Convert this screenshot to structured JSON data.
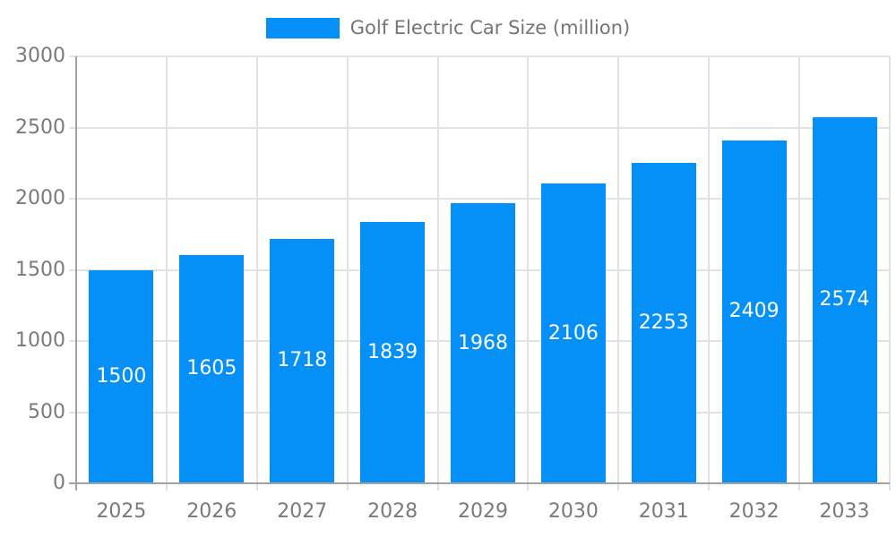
{
  "chart_data": {
    "type": "bar",
    "title": "Golf Electric Car Size (million)",
    "categories": [
      "2025",
      "2026",
      "2027",
      "2028",
      "2029",
      "2030",
      "2031",
      "2032",
      "2033"
    ],
    "values": [
      1500,
      1605,
      1718,
      1839,
      1968,
      2106,
      2253,
      2409,
      2574
    ],
    "xlabel": "",
    "ylabel": "",
    "ylim": [
      0,
      3000
    ],
    "yticks": [
      0,
      500,
      1000,
      1500,
      2000,
      2500,
      3000
    ],
    "grid": true,
    "legend_position": "top",
    "value_label_position": "inside-center",
    "colors": {
      "bar": "#0590f8",
      "value_label": "#ffffff",
      "axis_text": "#7a7a7a",
      "legend_text": "#757575",
      "grid_line": "#e2e2e2",
      "axis_line": "#a2a2a2",
      "background": "#ffffff"
    }
  }
}
